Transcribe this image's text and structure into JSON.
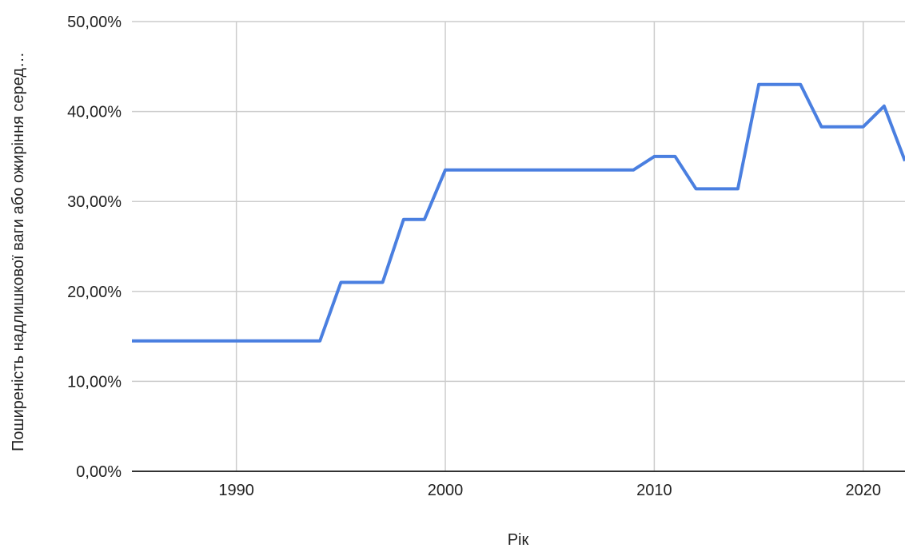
{
  "chart_data": {
    "type": "line",
    "xlabel": "Рік",
    "ylabel": "Поширеність надлишкової ваги або ожиріння серед…",
    "xlim": [
      1985,
      2022
    ],
    "ylim": [
      0,
      50
    ],
    "x_ticks": [
      1990,
      2000,
      2010,
      2020
    ],
    "x_tick_labels": [
      "1990",
      "2000",
      "2010",
      "2020"
    ],
    "y_ticks": [
      0,
      10,
      20,
      30,
      40,
      50
    ],
    "y_tick_labels": [
      "0,00%",
      "10,00%",
      "20,00%",
      "30,00%",
      "40,00%",
      "50,00%"
    ],
    "grid": true,
    "series": [
      {
        "color": "#4a7fe0",
        "x": [
          1985,
          1994,
          1995,
          1997,
          1998,
          1999,
          2000,
          2009,
          2010,
          2011,
          2012,
          2014,
          2015,
          2017,
          2018,
          2020,
          2021,
          2022
        ],
        "values": [
          14.5,
          14.5,
          21.0,
          21.0,
          28.0,
          28.0,
          33.5,
          33.5,
          35.0,
          35.0,
          31.4,
          31.4,
          43.0,
          43.0,
          38.3,
          38.3,
          40.6,
          34.5
        ]
      }
    ]
  }
}
